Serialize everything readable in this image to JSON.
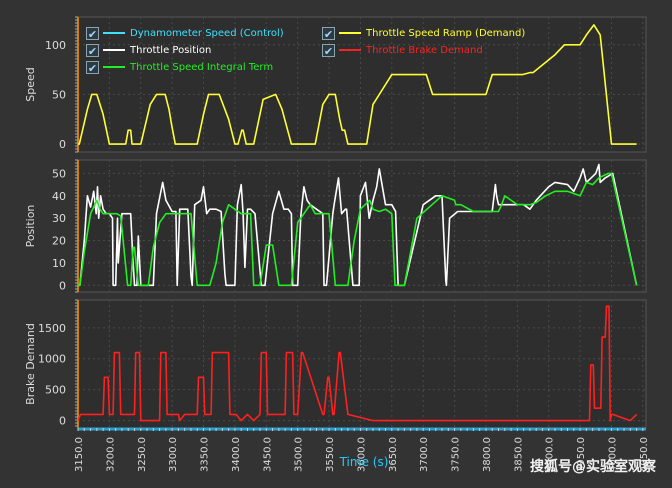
{
  "chart_data": {
    "type": "line",
    "xlabel": "Time (s)",
    "x_ticks": [
      "3150.0",
      "3200.0",
      "3250.0",
      "3300.0",
      "3350.0",
      "3400.0",
      "3450.0",
      "3500.0",
      "3550.0",
      "3600.0",
      "3650.0",
      "3700.0",
      "3750.0",
      "3800.0",
      "3850.0",
      "3900.0",
      "3950.0",
      "4000.0",
      "4050.0"
    ],
    "xlim": [
      3150,
      4055
    ],
    "legend": [
      {
        "name": "Dynamometer Speed (Control)",
        "color": "#3fe0ff",
        "checked": true
      },
      {
        "name": "Throttle Speed Ramp (Demand)",
        "color": "#ffff33",
        "checked": true
      },
      {
        "name": "Throttle Position",
        "color": "#ffffff",
        "checked": true
      },
      {
        "name": "Throttle Brake Demand",
        "color": "#ff2020",
        "checked": true
      },
      {
        "name": "Throttle Speed Integral Term",
        "color": "#22ee22",
        "checked": true
      }
    ],
    "panels": [
      {
        "ylabel": "Speed",
        "ylim": [
          -8,
          128
        ],
        "yticks": [
          0,
          50,
          100
        ],
        "series": [
          {
            "name": "Throttle Speed Ramp (Demand)",
            "color": "#ffff33",
            "x": [
              3150,
              3152,
              3165,
              3172,
              3180,
              3190,
              3200,
              3210,
              3226,
              3230,
              3234,
              3236,
              3242,
              3250,
              3265,
              3275,
              3289,
              3295,
              3299,
              3305,
              3310,
              3320,
              3330,
              3340,
              3350,
              3358,
              3375,
              3390,
              3400,
              3405,
              3411,
              3413,
              3418,
              3424,
              3430,
              3445,
              3465,
              3475,
              3490,
              3500,
              3510,
              3528,
              3540,
              3550,
              3560,
              3567,
              3571,
              3575,
              3580,
              3595,
              3600,
              3610,
              3620,
              3635,
              3650,
              3658,
              3670,
              3705,
              3715,
              3740,
              3780,
              3800,
              3810,
              3858,
              3870,
              3875,
              3910,
              3925,
              3945,
              3950,
              3960,
              3972,
              3982,
              4000,
              4040
            ],
            "y": [
              0,
              0,
              35,
              50,
              50,
              30,
              0,
              0,
              0,
              14,
              14,
              0,
              0,
              0,
              40,
              50,
              50,
              35,
              20,
              0,
              0,
              0,
              0,
              0,
              30,
              50,
              50,
              25,
              0,
              0,
              14,
              14,
              0,
              0,
              0,
              45,
              50,
              35,
              0,
              0,
              0,
              0,
              40,
              50,
              50,
              25,
              14,
              14,
              0,
              0,
              0,
              0,
              40,
              55,
              70,
              70,
              70,
              70,
              50,
              50,
              50,
              50,
              70,
              70,
              72,
              72,
              90,
              100,
              100,
              100,
              110,
              120,
              110,
              0,
              0
            ]
          }
        ]
      },
      {
        "ylabel": "Position",
        "ylim": [
          -3,
          56
        ],
        "yticks": [
          0,
          10,
          20,
          30,
          40,
          50
        ],
        "series": [
          {
            "name": "Throttle Position",
            "color": "#ffffff",
            "x": [
              3150,
              3153,
              3160,
              3165,
              3170,
              3175,
              3179,
              3181,
              3183,
              3186,
              3190,
              3195,
              3200,
              3205,
              3206,
              3210,
              3213,
              3214,
              3220,
              3226,
              3234,
              3237,
              3240,
              3244,
              3246,
              3250,
              3270,
              3275,
              3285,
              3290,
              3300,
              3306,
              3308,
              3312,
              3325,
              3330,
              3332,
              3336,
              3346,
              3350,
              3355,
              3360,
              3370,
              3378,
              3384,
              3386,
              3400,
              3404,
              3410,
              3413,
              3416,
              3420,
              3425,
              3432,
              3442,
              3448,
              3460,
              3470,
              3478,
              3485,
              3490,
              3492,
              3500,
              3505,
              3510,
              3515,
              3520,
              3530,
              3540,
              3542,
              3546,
              3556,
              3558,
              3565,
              3570,
              3576,
              3578,
              3588,
              3598,
              3600,
              3608,
              3614,
              3620,
              3626,
              3630,
              3640,
              3650,
              3656,
              3660,
              3670,
              3700,
              3720,
              3730,
              3736,
              3737,
              3742,
              3755,
              3760,
              3770,
              3810,
              3815,
              3817,
              3820,
              3830,
              3860,
              3870,
              3880,
              3900,
              3910,
              3930,
              3940,
              3950,
              3955,
              3960,
              3975,
              3980,
              3982,
              3990,
              4002,
              4040
            ],
            "y": [
              0,
              0,
              20,
              40,
              35,
              42,
              32,
              44,
              30,
              40,
              34,
              32,
              32,
              30,
              0,
              0,
              30,
              10,
              32,
              32,
              32,
              14,
              0,
              0,
              22,
              0,
              0,
              32,
              46,
              38,
              33,
              33,
              0,
              34,
              34,
              4,
              0,
              36,
              38,
              44,
              32,
              34,
              34,
              33,
              5,
              0,
              0,
              36,
              45,
              32,
              8,
              34,
              34,
              32,
              0,
              0,
              32,
              42,
              34,
              34,
              32,
              0,
              0,
              31,
              44,
              38,
              36,
              34,
              32,
              0,
              0,
              32,
              36,
              48,
              32,
              34,
              34,
              0,
              0,
              40,
              46,
              30,
              38,
              44,
              52,
              36,
              36,
              33,
              0,
              0,
              36,
              40,
              40,
              2,
              0,
              30,
              33,
              33,
              33,
              33,
              45,
              40,
              36,
              36,
              36,
              34,
              38,
              44,
              46,
              45,
              42,
              48,
              52,
              46,
              50,
              54,
              46,
              48,
              50,
              0
            ]
          },
          {
            "name": "Throttle Speed Integral Term",
            "color": "#22ee22",
            "x": [
              3150,
              3153,
              3160,
              3170,
              3180,
              3185,
              3190,
              3196,
              3200,
              3212,
              3218,
              3229,
              3234,
              3238,
              3240,
              3246,
              3250,
              3259,
              3262,
              3270,
              3280,
              3290,
              3300,
              3310,
              3330,
              3340,
              3355,
              3360,
              3370,
              3380,
              3390,
              3400,
              3410,
              3416,
              3425,
              3430,
              3440,
              3450,
              3460,
              3470,
              3480,
              3490,
              3500,
              3520,
              3528,
              3540,
              3550,
              3560,
              3570,
              3580,
              3590,
              3600,
              3615,
              3620,
              3630,
              3640,
              3650,
              3655,
              3660,
              3670,
              3690,
              3730,
              3750,
              3752,
              3760,
              3780,
              3810,
              3820,
              3825,
              3830,
              3850,
              3870,
              3880,
              3895,
              3910,
              3930,
              3950,
              3960,
              3970,
              3980,
              3995,
              4000,
              4040
            ],
            "y": [
              0,
              0,
              15,
              32,
              38,
              34,
              32,
              32,
              32,
              32,
              31,
              0,
              0,
              17,
              17,
              0,
              0,
              0,
              0,
              17,
              28,
              32,
              32,
              32,
              32,
              0,
              0,
              0,
              10,
              28,
              36,
              34,
              32,
              32,
              32,
              0,
              0,
              18,
              18,
              0,
              0,
              0,
              28,
              36,
              32,
              32,
              32,
              0,
              0,
              0,
              20,
              34,
              38,
              34,
              33,
              34,
              32,
              0,
              0,
              0,
              30,
              40,
              38,
              36,
              36,
              33,
              33,
              33,
              36,
              40,
              36,
              36,
              37,
              40,
              42,
              42,
              40,
              46,
              45,
              48,
              50,
              50,
              0
            ]
          }
        ]
      },
      {
        "ylabel": "Brake Demand",
        "ylim": [
          -120,
          1950
        ],
        "yticks": [
          0,
          500,
          1000,
          1500
        ],
        "series": [
          {
            "name": "Throttle Brake Demand",
            "color": "#ff2020",
            "x": [
              3150,
              3154,
              3190,
              3192,
              3198,
              3200,
              3206,
              3208,
              3216,
              3218,
              3240,
              3242,
              3248,
              3250,
              3280,
              3282,
              3290,
              3292,
              3300,
              3302,
              3310,
              3312,
              3320,
              3340,
              3342,
              3350,
              3352,
              3362,
              3364,
              3390,
              3392,
              3400,
              3402,
              3410,
              3420,
              3430,
              3440,
              3442,
              3450,
              3452,
              3480,
              3482,
              3492,
              3494,
              3500,
              3506,
              3508,
              3540,
              3542,
              3548,
              3550,
              3556,
              3558,
              3566,
              3568,
              3580,
              3600,
              3620,
              3700,
              3800,
              3900,
              3965,
              3967,
              3971,
              3973,
              3983,
              3985,
              3990,
              3992,
              3996,
              3998,
              4000,
              4002,
              4030,
              4040
            ],
            "y": [
              0,
              100,
              100,
              700,
              700,
              100,
              100,
              1100,
              1100,
              100,
              100,
              1100,
              1100,
              0,
              0,
              1100,
              1100,
              100,
              100,
              100,
              100,
              0,
              100,
              100,
              700,
              700,
              100,
              100,
              1100,
              1100,
              100,
              100,
              100,
              0,
              100,
              0,
              100,
              1100,
              1100,
              100,
              100,
              1100,
              1100,
              100,
              100,
              1100,
              1100,
              100,
              100,
              700,
              700,
              100,
              100,
              1100,
              1100,
              100,
              50,
              0,
              0,
              0,
              0,
              0,
              900,
              900,
              200,
              200,
              1350,
              1350,
              1850,
              1850,
              0,
              100,
              100,
              0,
              100
            ]
          }
        ]
      }
    ],
    "watermark": "搜狐号@实验室观察"
  }
}
